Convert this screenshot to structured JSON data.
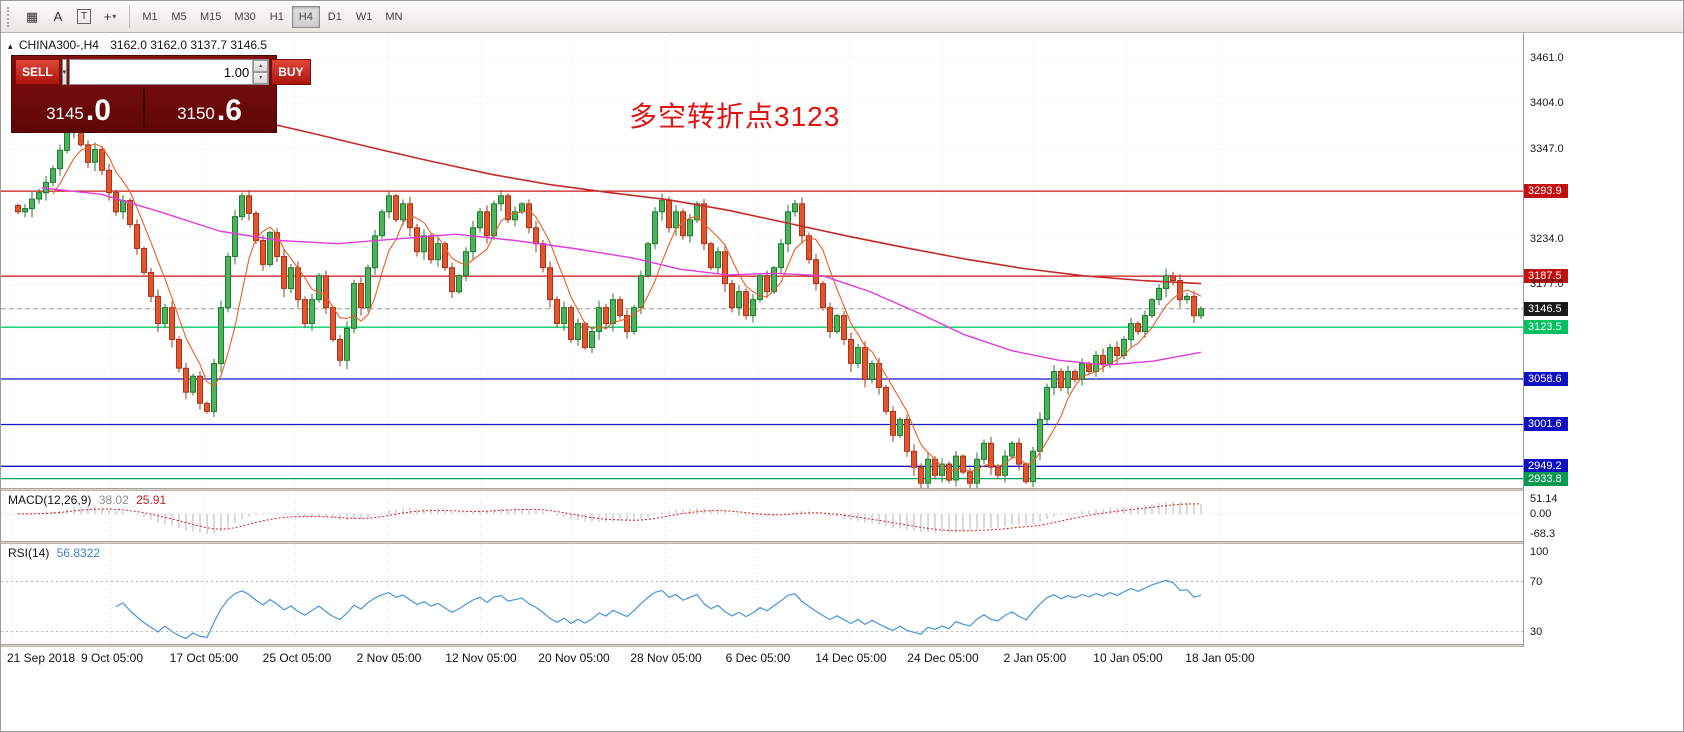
{
  "toolbar": {
    "icons": [
      {
        "name": "windows-grid-icon",
        "glyph": "▦"
      },
      {
        "name": "label-tool-icon",
        "glyph": "A"
      },
      {
        "name": "text-tool-icon",
        "glyph": "T"
      },
      {
        "name": "crosshair-tool-icon",
        "glyph": "+"
      }
    ],
    "dropdown_glyph": "▾",
    "timeframes": [
      "M1",
      "M5",
      "M15",
      "M30",
      "H1",
      "H4",
      "D1",
      "W1",
      "MN"
    ],
    "active_timeframe": "H4"
  },
  "chart_header": {
    "collapse_glyph": "▴",
    "symbol": "CHINA300-,H4",
    "ohlc": "3162.0 3162.0 3137.7 3146.5"
  },
  "quote_panel": {
    "sell_label": "SELL",
    "buy_label": "BUY",
    "volume": "1.00",
    "dropdown_glyph": "▾",
    "spin_up_glyph": "▲",
    "spin_down_glyph": "▼",
    "sell_price_main": "3145",
    "sell_price_pips": ".0",
    "buy_price_main": "3150",
    "buy_price_pips": ".6"
  },
  "annotation": {
    "text": "多空转折点3123",
    "color": "#e31212"
  },
  "price_axis": {
    "items": [
      {
        "label": "3461.0",
        "price": 3461.0,
        "style": "tick"
      },
      {
        "label": "3404.0",
        "price": 3404.0,
        "style": "tick"
      },
      {
        "label": "3347.0",
        "price": 3347.0,
        "style": "tick"
      },
      {
        "label": "3293.9",
        "price": 3293.9,
        "style": "badge",
        "color": "#c40f0f"
      },
      {
        "label": "3234.0",
        "price": 3234.0,
        "style": "tick"
      },
      {
        "label": "3187.5",
        "price": 3187.5,
        "style": "badge",
        "color": "#c40f0f"
      },
      {
        "label": "3177.0",
        "price": 3177.0,
        "style": "tick"
      },
      {
        "label": "3146.5",
        "price": 3146.5,
        "style": "badge",
        "color": "#1a1a1a"
      },
      {
        "label": "3123.5",
        "price": 3123.5,
        "style": "badge",
        "color": "#00c060"
      },
      {
        "label": "3058.6",
        "price": 3058.6,
        "style": "badge",
        "color": "#0f0fc4"
      },
      {
        "label": "3001.6",
        "price": 3001.6,
        "style": "badge",
        "color": "#0f0fc4"
      },
      {
        "label": "2949.2",
        "price": 2949.2,
        "style": "badge",
        "color": "#0f0fc4"
      },
      {
        "label": "2933.8",
        "price": 2933.8,
        "style": "badge",
        "color": "#089a50"
      }
    ]
  },
  "macd": {
    "label": "MACD(12,26,9)",
    "main_value": "38.02",
    "signal_value": "25.91",
    "axis": [
      {
        "label": "51.14",
        "value": 51.14
      },
      {
        "label": "0.00",
        "value": 0
      },
      {
        "label": "-68.3",
        "value": -68.3
      }
    ]
  },
  "rsi": {
    "label": "RSI(14)",
    "value": "56.8322",
    "axis": [
      {
        "label": "100",
        "value": 100
      },
      {
        "label": "70",
        "value": 70
      },
      {
        "label": "30",
        "value": 30
      }
    ]
  },
  "time_axis": {
    "labels": [
      "21 Sep 2018",
      "9 Oct 05:00",
      "17 Oct 05:00",
      "25 Oct 05:00",
      "2 Nov 05:00",
      "12 Nov 05:00",
      "20 Nov 05:00",
      "28 Nov 05:00",
      "6 Dec 05:00",
      "14 Dec 05:00",
      "24 Dec 05:00",
      "2 Jan 05:00",
      "10 Jan 05:00",
      "18 Jan 05:00"
    ]
  },
  "chart_data": {
    "type": "candlestick",
    "symbol": "CHINA300-",
    "timeframe": "H4",
    "last_bar": {
      "open": 3162.0,
      "high": 3162.0,
      "low": 3137.7,
      "close": 3146.5
    },
    "current_price": 3146.5,
    "price_range": [
      2922,
      3492
    ],
    "grid_prices": [
      3461,
      3404,
      3347,
      3290,
      3234,
      3177,
      3120,
      3063,
      3006,
      2949
    ],
    "closes": [
      3268,
      3272,
      3284,
      3292,
      3305,
      3322,
      3345,
      3368,
      3378,
      3352,
      3330,
      3346,
      3320,
      3292,
      3268,
      3282,
      3252,
      3222,
      3192,
      3162,
      3128,
      3148,
      3108,
      3072,
      3042,
      3062,
      3028,
      3018,
      3078,
      3148,
      3212,
      3262,
      3288,
      3266,
      3232,
      3202,
      3242,
      3212,
      3172,
      3198,
      3158,
      3128,
      3158,
      3188,
      3148,
      3108,
      3082,
      3122,
      3178,
      3148,
      3198,
      3238,
      3268,
      3288,
      3258,
      3278,
      3248,
      3218,
      3238,
      3208,
      3228,
      3198,
      3168,
      3188,
      3218,
      3248,
      3268,
      3238,
      3278,
      3288,
      3258,
      3268,
      3278,
      3248,
      3228,
      3198,
      3158,
      3128,
      3148,
      3108,
      3128,
      3098,
      3118,
      3148,
      3128,
      3158,
      3138,
      3118,
      3148,
      3188,
      3228,
      3268,
      3282,
      3248,
      3268,
      3238,
      3258,
      3278,
      3228,
      3198,
      3218,
      3178,
      3148,
      3168,
      3138,
      3158,
      3188,
      3168,
      3198,
      3228,
      3268,
      3278,
      3238,
      3208,
      3178,
      3148,
      3118,
      3138,
      3108,
      3078,
      3098,
      3058,
      3078,
      3048,
      3018,
      2988,
      3008,
      2968,
      2948,
      2928,
      2958,
      2938,
      2952,
      2932,
      2962,
      2942,
      2928,
      2958,
      2978,
      2948,
      2938,
      2962,
      2978,
      2952,
      2930,
      2968,
      3008,
      3048,
      3068,
      3048,
      3068,
      3058,
      3078,
      3068,
      3088,
      3078,
      3098,
      3088,
      3108,
      3128,
      3118,
      3138,
      3158,
      3172,
      3188,
      3182,
      3158,
      3162,
      3137.7,
      3146.5
    ],
    "candle_up": {
      "fill": "#4db35a",
      "stroke": "#1f7d2f"
    },
    "candle_down": {
      "fill": "#e4532c",
      "stroke": "#a8341a"
    },
    "current_price_line_color": "#9a9a9a",
    "horizontal_lines": [
      {
        "price": 3293.9,
        "color": "#d01414"
      },
      {
        "price": 3187.5,
        "color": "#d01414"
      },
      {
        "price": 3123.5,
        "color": "#00cf6e"
      },
      {
        "price": 3058.6,
        "color": "#1515cc"
      },
      {
        "price": 3001.6,
        "color": "#1515cc"
      },
      {
        "price": 2949.2,
        "color": "#1515cc"
      },
      {
        "price": 2933.8,
        "color": "#00a65a"
      }
    ],
    "ma_fast": {
      "period": 6,
      "color": "#e8602a"
    },
    "ma_mid": {
      "color": "#e03ce0",
      "points": [
        [
          0.02,
          3298
        ],
        [
          0.07,
          3290
        ],
        [
          0.12,
          3268
        ],
        [
          0.17,
          3244
        ],
        [
          0.22,
          3232
        ],
        [
          0.27,
          3228
        ],
        [
          0.32,
          3234
        ],
        [
          0.37,
          3240
        ],
        [
          0.42,
          3232
        ],
        [
          0.47,
          3222
        ],
        [
          0.52,
          3210
        ],
        [
          0.56,
          3196
        ],
        [
          0.6,
          3189
        ],
        [
          0.64,
          3191
        ],
        [
          0.68,
          3188
        ],
        [
          0.72,
          3168
        ],
        [
          0.76,
          3142
        ],
        [
          0.8,
          3114
        ],
        [
          0.84,
          3094
        ],
        [
          0.88,
          3082
        ],
        [
          0.92,
          3076
        ],
        [
          0.96,
          3081
        ],
        [
          1.0,
          3092
        ]
      ]
    },
    "ma_slow": {
      "color": "#c42b2b",
      "points": [
        [
          0.2,
          3383
        ],
        [
          0.25,
          3366
        ],
        [
          0.3,
          3348
        ],
        [
          0.35,
          3331
        ],
        [
          0.4,
          3315
        ],
        [
          0.45,
          3302
        ],
        [
          0.5,
          3292
        ],
        [
          0.55,
          3283
        ],
        [
          0.6,
          3270
        ],
        [
          0.65,
          3254
        ],
        [
          0.7,
          3238
        ],
        [
          0.75,
          3223
        ],
        [
          0.8,
          3209
        ],
        [
          0.85,
          3197
        ],
        [
          0.9,
          3188
        ],
        [
          0.95,
          3182
        ],
        [
          1.0,
          3178
        ]
      ]
    },
    "indicators": {
      "macd": {
        "fast": 12,
        "slow": 26,
        "signal": 9,
        "main_value": 38.02,
        "signal_value": 25.91,
        "range": [
          -92,
          78
        ],
        "histogram_color": "#b6b6b6",
        "signal_color": "#d02020"
      },
      "rsi": {
        "period": 14,
        "value": 56.8322,
        "range": [
          20,
          100
        ],
        "levels": [
          70,
          30
        ],
        "line_color": "#4a94d8"
      }
    }
  }
}
